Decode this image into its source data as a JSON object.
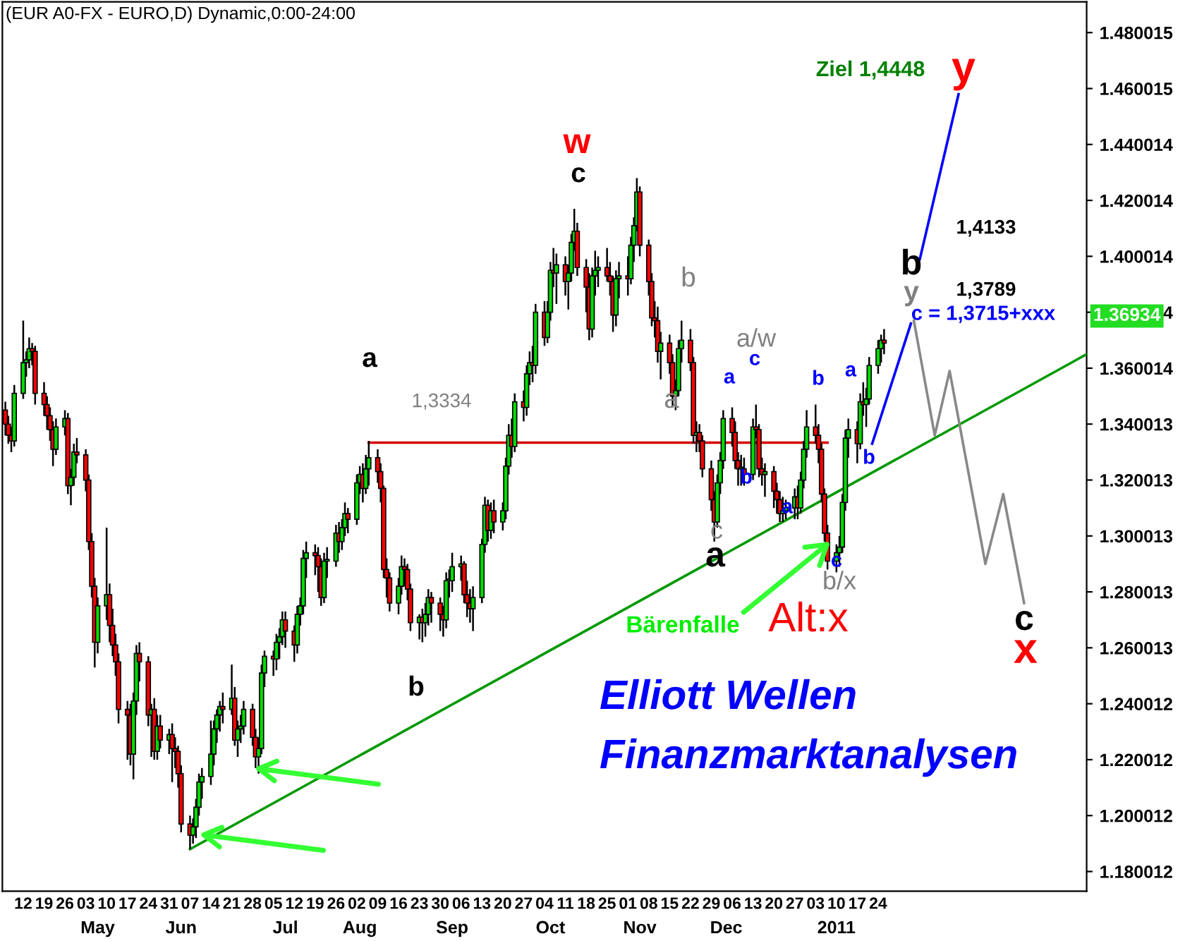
{
  "chart_data": {
    "type": "candlestick",
    "title": "(EUR A0-FX - EURO,D) Dynamic,0:00-24:00",
    "x": [
      "2010-04-06",
      "2010-04-07",
      "2010-04-08",
      "2010-04-09",
      "2010-04-12",
      "2010-04-13",
      "2010-04-14",
      "2010-04-15",
      "2010-04-16",
      "2010-04-19",
      "2010-04-20",
      "2010-04-21",
      "2010-04-22",
      "2010-04-23",
      "2010-04-26",
      "2010-04-27",
      "2010-04-28",
      "2010-04-29",
      "2010-04-30",
      "2010-05-03",
      "2010-05-04",
      "2010-05-05",
      "2010-05-06",
      "2010-05-07",
      "2010-05-10",
      "2010-05-11",
      "2010-05-12",
      "2010-05-13",
      "2010-05-14",
      "2010-05-17",
      "2010-05-18",
      "2010-05-19",
      "2010-05-20",
      "2010-05-21",
      "2010-05-24",
      "2010-05-25",
      "2010-05-26",
      "2010-05-27",
      "2010-05-28",
      "2010-05-31",
      "2010-06-01",
      "2010-06-02",
      "2010-06-03",
      "2010-06-04",
      "2010-06-07",
      "2010-06-08",
      "2010-06-09",
      "2010-06-10",
      "2010-06-11",
      "2010-06-14",
      "2010-06-15",
      "2010-06-16",
      "2010-06-17",
      "2010-06-18",
      "2010-06-21",
      "2010-06-22",
      "2010-06-23",
      "2010-06-24",
      "2010-06-25",
      "2010-06-28",
      "2010-06-29",
      "2010-06-30",
      "2010-07-01",
      "2010-07-02",
      "2010-07-05",
      "2010-07-06",
      "2010-07-07",
      "2010-07-08",
      "2010-07-09",
      "2010-07-12",
      "2010-07-13",
      "2010-07-14",
      "2010-07-15",
      "2010-07-16",
      "2010-07-19",
      "2010-07-20",
      "2010-07-21",
      "2010-07-22",
      "2010-07-23",
      "2010-07-26",
      "2010-07-27",
      "2010-07-28",
      "2010-07-29",
      "2010-07-30",
      "2010-08-02",
      "2010-08-03",
      "2010-08-04",
      "2010-08-05",
      "2010-08-06",
      "2010-08-09",
      "2010-08-10",
      "2010-08-11",
      "2010-08-12",
      "2010-08-13",
      "2010-08-16",
      "2010-08-17",
      "2010-08-18",
      "2010-08-19",
      "2010-08-20",
      "2010-08-23",
      "2010-08-24",
      "2010-08-25",
      "2010-08-26",
      "2010-08-27",
      "2010-08-30",
      "2010-08-31",
      "2010-09-01",
      "2010-09-02",
      "2010-09-03",
      "2010-09-06",
      "2010-09-07",
      "2010-09-08",
      "2010-09-09",
      "2010-09-10",
      "2010-09-13",
      "2010-09-14",
      "2010-09-15",
      "2010-09-16",
      "2010-09-17",
      "2010-09-20",
      "2010-09-21",
      "2010-09-22",
      "2010-09-23",
      "2010-09-24",
      "2010-09-27",
      "2010-09-28",
      "2010-09-29",
      "2010-09-30",
      "2010-10-01",
      "2010-10-04",
      "2010-10-05",
      "2010-10-06",
      "2010-10-07",
      "2010-10-08",
      "2010-10-11",
      "2010-10-12",
      "2010-10-13",
      "2010-10-14",
      "2010-10-15",
      "2010-10-18",
      "2010-10-19",
      "2010-10-20",
      "2010-10-21",
      "2010-10-22",
      "2010-10-25",
      "2010-10-26",
      "2010-10-27",
      "2010-10-28",
      "2010-10-29",
      "2010-11-01",
      "2010-11-02",
      "2010-11-03",
      "2010-11-04",
      "2010-11-05",
      "2010-11-08",
      "2010-11-09",
      "2010-11-10",
      "2010-11-11",
      "2010-11-12",
      "2010-11-15",
      "2010-11-16",
      "2010-11-17",
      "2010-11-18",
      "2010-11-19",
      "2010-11-22",
      "2010-11-23",
      "2010-11-24",
      "2010-11-25",
      "2010-11-26",
      "2010-11-29",
      "2010-11-30",
      "2010-12-01",
      "2010-12-02",
      "2010-12-03",
      "2010-12-06",
      "2010-12-07",
      "2010-12-08",
      "2010-12-09",
      "2010-12-10",
      "2010-12-13",
      "2010-12-14",
      "2010-12-15",
      "2010-12-16",
      "2010-12-17",
      "2010-12-20",
      "2010-12-21",
      "2010-12-22",
      "2010-12-23",
      "2010-12-24",
      "2010-12-27",
      "2010-12-28",
      "2010-12-29",
      "2010-12-30",
      "2010-12-31",
      "2011-01-03",
      "2011-01-04",
      "2011-01-05",
      "2011-01-06",
      "2011-01-07",
      "2011-01-10",
      "2011-01-11",
      "2011-01-12",
      "2011-01-13",
      "2011-01-14",
      "2011-01-17",
      "2011-01-18",
      "2011-01-19",
      "2011-01-20",
      "2011-01-21",
      "2011-01-24",
      "2011-01-25",
      "2011-01-26"
    ],
    "ohlc": [
      [
        1.345,
        1.348,
        1.336,
        1.34
      ],
      [
        1.34,
        1.343,
        1.333,
        1.336
      ],
      [
        1.336,
        1.339,
        1.33,
        1.334
      ],
      [
        1.334,
        1.354,
        1.332,
        1.351
      ],
      [
        1.351,
        1.377,
        1.349,
        1.362
      ],
      [
        1.362,
        1.366,
        1.357,
        1.363
      ],
      [
        1.363,
        1.371,
        1.36,
        1.367
      ],
      [
        1.367,
        1.369,
        1.361,
        1.366
      ],
      [
        1.366,
        1.368,
        1.347,
        1.351
      ],
      [
        1.351,
        1.355,
        1.343,
        1.347
      ],
      [
        1.347,
        1.35,
        1.338,
        1.343
      ],
      [
        1.343,
        1.346,
        1.334,
        1.338
      ],
      [
        1.338,
        1.341,
        1.325,
        1.331
      ],
      [
        1.331,
        1.342,
        1.329,
        1.339
      ],
      [
        1.339,
        1.345,
        1.336,
        1.342
      ],
      [
        1.342,
        1.344,
        1.315,
        1.318
      ],
      [
        1.318,
        1.324,
        1.311,
        1.321
      ],
      [
        1.321,
        1.333,
        1.318,
        1.33
      ],
      [
        1.33,
        1.335,
        1.326,
        1.329
      ],
      [
        1.329,
        1.331,
        1.316,
        1.32
      ],
      [
        1.32,
        1.322,
        1.295,
        1.298
      ],
      [
        1.298,
        1.301,
        1.278,
        1.282
      ],
      [
        1.282,
        1.285,
        1.253,
        1.262
      ],
      [
        1.262,
        1.278,
        1.258,
        1.275
      ],
      [
        1.275,
        1.303,
        1.27,
        1.279
      ],
      [
        1.279,
        1.283,
        1.262,
        1.268
      ],
      [
        1.268,
        1.274,
        1.257,
        1.261
      ],
      [
        1.261,
        1.265,
        1.25,
        1.255
      ],
      [
        1.255,
        1.258,
        1.233,
        1.238
      ],
      [
        1.238,
        1.241,
        1.22,
        1.236
      ],
      [
        1.236,
        1.24,
        1.218,
        1.222
      ],
      [
        1.222,
        1.244,
        1.213,
        1.241
      ],
      [
        1.241,
        1.261,
        1.236,
        1.258
      ],
      [
        1.258,
        1.262,
        1.248,
        1.255
      ],
      [
        1.255,
        1.257,
        1.232,
        1.236
      ],
      [
        1.236,
        1.24,
        1.221,
        1.238
      ],
      [
        1.238,
        1.242,
        1.22,
        1.223
      ],
      [
        1.223,
        1.236,
        1.22,
        1.232
      ],
      [
        1.232,
        1.236,
        1.224,
        1.227
      ],
      [
        1.227,
        1.231,
        1.222,
        1.229
      ],
      [
        1.229,
        1.233,
        1.212,
        1.224
      ],
      [
        1.224,
        1.228,
        1.217,
        1.223
      ],
      [
        1.223,
        1.225,
        1.21,
        1.215
      ],
      [
        1.215,
        1.218,
        1.194,
        1.197
      ],
      [
        1.197,
        1.2,
        1.188,
        1.193
      ],
      [
        1.193,
        1.199,
        1.19,
        1.196
      ],
      [
        1.196,
        1.206,
        1.192,
        1.203
      ],
      [
        1.203,
        1.215,
        1.2,
        1.212
      ],
      [
        1.212,
        1.217,
        1.206,
        1.214
      ],
      [
        1.214,
        1.234,
        1.211,
        1.222
      ],
      [
        1.222,
        1.234,
        1.218,
        1.231
      ],
      [
        1.231,
        1.238,
        1.226,
        1.236
      ],
      [
        1.236,
        1.241,
        1.23,
        1.239
      ],
      [
        1.239,
        1.244,
        1.233,
        1.238
      ],
      [
        1.238,
        1.254,
        1.236,
        1.242
      ],
      [
        1.242,
        1.246,
        1.225,
        1.227
      ],
      [
        1.227,
        1.234,
        1.221,
        1.231
      ],
      [
        1.231,
        1.236,
        1.226,
        1.232
      ],
      [
        1.232,
        1.241,
        1.229,
        1.238
      ],
      [
        1.238,
        1.24,
        1.225,
        1.228
      ],
      [
        1.228,
        1.231,
        1.217,
        1.221
      ],
      [
        1.221,
        1.228,
        1.215,
        1.224
      ],
      [
        1.224,
        1.254,
        1.222,
        1.251
      ],
      [
        1.251,
        1.259,
        1.246,
        1.257
      ],
      [
        1.257,
        1.259,
        1.25,
        1.256
      ],
      [
        1.256,
        1.265,
        1.252,
        1.262
      ],
      [
        1.262,
        1.267,
        1.256,
        1.264
      ],
      [
        1.264,
        1.273,
        1.261,
        1.27
      ],
      [
        1.27,
        1.273,
        1.26,
        1.266
      ],
      [
        1.266,
        1.268,
        1.255,
        1.261
      ],
      [
        1.261,
        1.275,
        1.258,
        1.272
      ],
      [
        1.272,
        1.278,
        1.268,
        1.275
      ],
      [
        1.275,
        1.295,
        1.272,
        1.292
      ],
      [
        1.292,
        1.298,
        1.285,
        1.294
      ],
      [
        1.294,
        1.297,
        1.286,
        1.293
      ],
      [
        1.293,
        1.296,
        1.28,
        1.289
      ],
      [
        1.289,
        1.292,
        1.275,
        1.278
      ],
      [
        1.278,
        1.294,
        1.276,
        1.291
      ],
      [
        1.291,
        1.296,
        1.285,
        1.291
      ],
      [
        1.291,
        1.304,
        1.289,
        1.301
      ],
      [
        1.301,
        1.305,
        1.294,
        1.298
      ],
      [
        1.298,
        1.306,
        1.295,
        1.303
      ],
      [
        1.303,
        1.312,
        1.3,
        1.308
      ],
      [
        1.308,
        1.31,
        1.301,
        1.306
      ],
      [
        1.306,
        1.322,
        1.304,
        1.319
      ],
      [
        1.319,
        1.325,
        1.315,
        1.322
      ],
      [
        1.322,
        1.326,
        1.312,
        1.317
      ],
      [
        1.317,
        1.329,
        1.315,
        1.324
      ],
      [
        1.324,
        1.334,
        1.318,
        1.328
      ],
      [
        1.328,
        1.331,
        1.319,
        1.323
      ],
      [
        1.323,
        1.326,
        1.312,
        1.317
      ],
      [
        1.317,
        1.318,
        1.285,
        1.288
      ],
      [
        1.288,
        1.292,
        1.278,
        1.285
      ],
      [
        1.285,
        1.287,
        1.273,
        1.276
      ],
      [
        1.276,
        1.285,
        1.272,
        1.282
      ],
      [
        1.282,
        1.293,
        1.279,
        1.289
      ],
      [
        1.289,
        1.292,
        1.282,
        1.288
      ],
      [
        1.288,
        1.29,
        1.277,
        1.281
      ],
      [
        1.281,
        1.283,
        1.266,
        1.269
      ],
      [
        1.269,
        1.272,
        1.263,
        1.271
      ],
      [
        1.271,
        1.274,
        1.262,
        1.269
      ],
      [
        1.269,
        1.276,
        1.264,
        1.272
      ],
      [
        1.272,
        1.281,
        1.268,
        1.278
      ],
      [
        1.278,
        1.28,
        1.269,
        1.276
      ],
      [
        1.276,
        1.278,
        1.266,
        1.272
      ],
      [
        1.272,
        1.275,
        1.264,
        1.27
      ],
      [
        1.27,
        1.287,
        1.267,
        1.284
      ],
      [
        1.284,
        1.288,
        1.278,
        1.284
      ],
      [
        1.284,
        1.294,
        1.28,
        1.289
      ],
      [
        1.289,
        1.293,
        1.284,
        1.29
      ],
      [
        1.29,
        1.291,
        1.276,
        1.279
      ],
      [
        1.279,
        1.284,
        1.271,
        1.276
      ],
      [
        1.276,
        1.281,
        1.269,
        1.274
      ],
      [
        1.274,
        1.282,
        1.266,
        1.278
      ],
      [
        1.278,
        1.299,
        1.276,
        1.297
      ],
      [
        1.297,
        1.314,
        1.294,
        1.311
      ],
      [
        1.311,
        1.313,
        1.298,
        1.302
      ],
      [
        1.302,
        1.312,
        1.299,
        1.309
      ],
      [
        1.309,
        1.313,
        1.301,
        1.305
      ],
      [
        1.305,
        1.312,
        1.302,
        1.309
      ],
      [
        1.309,
        1.328,
        1.306,
        1.325
      ],
      [
        1.325,
        1.34,
        1.322,
        1.336
      ],
      [
        1.336,
        1.342,
        1.328,
        1.332
      ],
      [
        1.332,
        1.351,
        1.33,
        1.348
      ],
      [
        1.348,
        1.352,
        1.341,
        1.346
      ],
      [
        1.346,
        1.361,
        1.343,
        1.358
      ],
      [
        1.358,
        1.366,
        1.354,
        1.362
      ],
      [
        1.362,
        1.368,
        1.355,
        1.361
      ],
      [
        1.361,
        1.383,
        1.358,
        1.38
      ],
      [
        1.38,
        1.384,
        1.368,
        1.371
      ],
      [
        1.371,
        1.384,
        1.369,
        1.38
      ],
      [
        1.38,
        1.398,
        1.377,
        1.395
      ],
      [
        1.395,
        1.403,
        1.389,
        1.394
      ],
      [
        1.394,
        1.401,
        1.383,
        1.397
      ],
      [
        1.397,
        1.4,
        1.386,
        1.391
      ],
      [
        1.391,
        1.397,
        1.381,
        1.394
      ],
      [
        1.394,
        1.408,
        1.391,
        1.405
      ],
      [
        1.405,
        1.417,
        1.402,
        1.409
      ],
      [
        1.409,
        1.412,
        1.393,
        1.396
      ],
      [
        1.396,
        1.399,
        1.38,
        1.389
      ],
      [
        1.389,
        1.394,
        1.37,
        1.374
      ],
      [
        1.374,
        1.396,
        1.371,
        1.393
      ],
      [
        1.393,
        1.402,
        1.386,
        1.395
      ],
      [
        1.395,
        1.4,
        1.389,
        1.396
      ],
      [
        1.396,
        1.403,
        1.391,
        1.393
      ],
      [
        1.393,
        1.398,
        1.386,
        1.391
      ],
      [
        1.391,
        1.393,
        1.373,
        1.379
      ],
      [
        1.379,
        1.395,
        1.375,
        1.392
      ],
      [
        1.392,
        1.398,
        1.385,
        1.393
      ],
      [
        1.393,
        1.4,
        1.386,
        1.392
      ],
      [
        1.392,
        1.407,
        1.39,
        1.404
      ],
      [
        1.404,
        1.414,
        1.398,
        1.411
      ],
      [
        1.411,
        1.428,
        1.409,
        1.423
      ],
      [
        1.423,
        1.425,
        1.4,
        1.404
      ],
      [
        1.404,
        1.406,
        1.386,
        1.391
      ],
      [
        1.391,
        1.394,
        1.375,
        1.378
      ],
      [
        1.378,
        1.384,
        1.371,
        1.377
      ],
      [
        1.377,
        1.382,
        1.362,
        1.366
      ],
      [
        1.366,
        1.373,
        1.356,
        1.369
      ],
      [
        1.369,
        1.372,
        1.358,
        1.362
      ],
      [
        1.362,
        1.365,
        1.346,
        1.35
      ],
      [
        1.35,
        1.356,
        1.345,
        1.352
      ],
      [
        1.352,
        1.37,
        1.35,
        1.367
      ],
      [
        1.367,
        1.377,
        1.362,
        1.37
      ],
      [
        1.37,
        1.374,
        1.359,
        1.362
      ],
      [
        1.362,
        1.364,
        1.333,
        1.336
      ],
      [
        1.336,
        1.341,
        1.33,
        1.337
      ],
      [
        1.337,
        1.34,
        1.33,
        1.334
      ],
      [
        1.334,
        1.336,
        1.321,
        1.324
      ],
      [
        1.324,
        1.327,
        1.309,
        1.313
      ],
      [
        1.313,
        1.316,
        1.298,
        1.305
      ],
      [
        1.305,
        1.322,
        1.303,
        1.319
      ],
      [
        1.319,
        1.33,
        1.315,
        1.327
      ],
      [
        1.327,
        1.345,
        1.324,
        1.342
      ],
      [
        1.342,
        1.346,
        1.332,
        1.337
      ],
      [
        1.337,
        1.341,
        1.324,
        1.327
      ],
      [
        1.327,
        1.33,
        1.318,
        1.324
      ],
      [
        1.324,
        1.329,
        1.318,
        1.324
      ],
      [
        1.324,
        1.328,
        1.318,
        1.322
      ],
      [
        1.322,
        1.342,
        1.32,
        1.339
      ],
      [
        1.339,
        1.347,
        1.335,
        1.338
      ],
      [
        1.338,
        1.34,
        1.321,
        1.324
      ],
      [
        1.324,
        1.328,
        1.318,
        1.322
      ],
      [
        1.322,
        1.326,
        1.314,
        1.323
      ],
      [
        1.323,
        1.325,
        1.31,
        1.316
      ],
      [
        1.316,
        1.319,
        1.308,
        1.313
      ],
      [
        1.313,
        1.316,
        1.305,
        1.308
      ],
      [
        1.308,
        1.314,
        1.305,
        1.309
      ],
      [
        1.309,
        1.313,
        1.306,
        1.31
      ],
      [
        1.31,
        1.317,
        1.306,
        1.314
      ],
      [
        1.314,
        1.318,
        1.306,
        1.31
      ],
      [
        1.31,
        1.323,
        1.308,
        1.32
      ],
      [
        1.32,
        1.334,
        1.317,
        1.331
      ],
      [
        1.331,
        1.345,
        1.328,
        1.339
      ],
      [
        1.339,
        1.347,
        1.333,
        1.336
      ],
      [
        1.336,
        1.34,
        1.326,
        1.331
      ],
      [
        1.331,
        1.333,
        1.312,
        1.315
      ],
      [
        1.315,
        1.317,
        1.298,
        1.301
      ],
      [
        1.301,
        1.304,
        1.288,
        1.291
      ],
      [
        1.291,
        1.297,
        1.287,
        1.294
      ],
      [
        1.294,
        1.3,
        1.289,
        1.296
      ],
      [
        1.296,
        1.315,
        1.294,
        1.312
      ],
      [
        1.312,
        1.338,
        1.309,
        1.335
      ],
      [
        1.335,
        1.342,
        1.328,
        1.338
      ],
      [
        1.338,
        1.341,
        1.326,
        1.333
      ],
      [
        1.333,
        1.351,
        1.331,
        1.348
      ],
      [
        1.348,
        1.355,
        1.343,
        1.347
      ],
      [
        1.347,
        1.353,
        1.339,
        1.349
      ],
      [
        1.349,
        1.364,
        1.347,
        1.361
      ],
      [
        1.361,
        1.37,
        1.358,
        1.367
      ],
      [
        1.367,
        1.372,
        1.362,
        1.37
      ],
      [
        1.37,
        1.374,
        1.365,
        1.369
      ]
    ],
    "series": [
      {
        "type": "line",
        "color": "#d40000",
        "x": [
          "2010-08-06",
          "2011-01-07"
        ],
        "values": [
          1.3334,
          1.3334
        ]
      },
      {
        "type": "line",
        "color": "#009900",
        "x": [
          "2010-06-07",
          "2011-04-04"
        ],
        "values": [
          1.188,
          1.365
        ]
      },
      {
        "type": "line",
        "color": "#0000ff",
        "x": [
          "2011-01-22",
          "2011-02-04"
        ],
        "values": [
          1.333,
          1.376
        ]
      },
      {
        "type": "line",
        "color": "#0000ff",
        "x": [
          "2011-02-07",
          "2011-02-20"
        ],
        "values": [
          1.399,
          1.458
        ]
      },
      {
        "type": "line",
        "color": "#888888",
        "x": [
          "2011-02-05",
          "2011-02-12",
          "2011-02-17",
          "2011-03-01",
          "2011-03-07",
          "2011-03-14"
        ],
        "values": [
          1.377,
          1.336,
          1.359,
          1.29,
          1.315,
          1.276
        ]
      }
    ],
    "annotations": [
      "w",
      "c",
      "a",
      "1,3334",
      "b",
      "a",
      "b",
      "c",
      "a",
      "a/w",
      "a",
      "c",
      "b",
      "a",
      "b",
      "c",
      "b/x",
      "a",
      "b",
      {
        "text": "Bärenfalle",
        "x": "2011-01-08",
        "y": 1.298
      },
      "Alt:x",
      "Ziel 1,4448",
      "y",
      "1,4133",
      "b",
      "1,3789",
      "y",
      "c = 1,3715+xxx",
      "c",
      "x",
      "Elliott Wellen",
      "Finanzmarktanalysen",
      "1.36934"
    ],
    "xlim": [
      "2010-04-05",
      "2011-04-04"
    ],
    "x2lim": [
      "2010-04-05",
      "2011-04-04"
    ],
    "xticks": [
      {
        "value": "2010-04-12",
        "label": "12"
      },
      {
        "value": "2010-04-19",
        "label": "19"
      },
      {
        "value": "2010-04-26",
        "label": "26"
      },
      {
        "value": "2010-05-03",
        "label": "03"
      },
      {
        "value": "2010-05-10",
        "label": "10"
      },
      {
        "value": "2010-05-17",
        "label": "17"
      },
      {
        "value": "2010-05-24",
        "label": "24"
      },
      {
        "value": "2010-05-31",
        "label": "31"
      },
      {
        "value": "2010-06-07",
        "label": "07"
      },
      {
        "value": "2010-06-14",
        "label": "14"
      },
      {
        "value": "2010-06-21",
        "label": "21"
      },
      {
        "value": "2010-06-28",
        "label": "28"
      },
      {
        "value": "2010-07-05",
        "label": "05"
      },
      {
        "value": "2010-07-12",
        "label": "12"
      },
      {
        "value": "2010-07-19",
        "label": "19"
      },
      {
        "value": "2010-07-26",
        "label": "26"
      },
      {
        "value": "2010-08-02",
        "label": "02"
      },
      {
        "value": "2010-08-09",
        "label": "09"
      },
      {
        "value": "2010-08-16",
        "label": "16"
      },
      {
        "value": "2010-08-23",
        "label": "23"
      },
      {
        "value": "2010-08-30",
        "label": "30"
      },
      {
        "value": "2010-09-06",
        "label": "06"
      },
      {
        "value": "2010-09-13",
        "label": "13"
      },
      {
        "value": "2010-09-20",
        "label": "20"
      },
      {
        "value": "2010-09-27",
        "label": "27"
      },
      {
        "value": "2010-10-04",
        "label": "04"
      },
      {
        "value": "2010-10-11",
        "label": "11"
      },
      {
        "value": "2010-10-18",
        "label": "18"
      },
      {
        "value": "2010-10-25",
        "label": "25"
      },
      {
        "value": "2010-11-01",
        "label": "01"
      },
      {
        "value": "2010-11-08",
        "label": "08"
      },
      {
        "value": "2010-11-15",
        "label": "15"
      },
      {
        "value": "2010-11-22",
        "label": "22"
      },
      {
        "value": "2010-11-29",
        "label": "29"
      },
      {
        "value": "2010-12-06",
        "label": "06"
      },
      {
        "value": "2010-12-13",
        "label": "13"
      },
      {
        "value": "2010-12-20",
        "label": "20"
      },
      {
        "value": "2010-12-27",
        "label": "27"
      },
      {
        "value": "2011-01-03",
        "label": "03"
      },
      {
        "value": "2011-01-10",
        "label": "10"
      },
      {
        "value": "2011-01-17",
        "label": "17"
      },
      {
        "value": "2011-01-24",
        "label": "24"
      }
    ],
    "x2ticks": [
      {
        "value": "2010-05-07",
        "label": "May"
      },
      {
        "value": "2010-06-04",
        "label": "Jun"
      },
      {
        "value": "2010-07-09",
        "label": "Jul"
      },
      {
        "value": "2010-08-03",
        "label": "Aug"
      },
      {
        "value": "2010-09-03",
        "label": "Sep"
      },
      {
        "value": "2010-10-06",
        "label": "Oct"
      },
      {
        "value": "2010-11-05",
        "label": "Nov"
      },
      {
        "value": "2010-12-04",
        "label": "Dec"
      },
      {
        "value": "2011-01-10",
        "label": "2011"
      }
    ],
    "ylim": [
      1.173,
      1.491
    ],
    "yticks": [
      1.480015,
      1.460015,
      1.440014,
      1.420014,
      1.400014,
      1.380014,
      1.360014,
      1.340013,
      1.320013,
      1.300013,
      1.280013,
      1.260013,
      1.240012,
      1.220012,
      1.200012,
      1.180012
    ]
  }
}
